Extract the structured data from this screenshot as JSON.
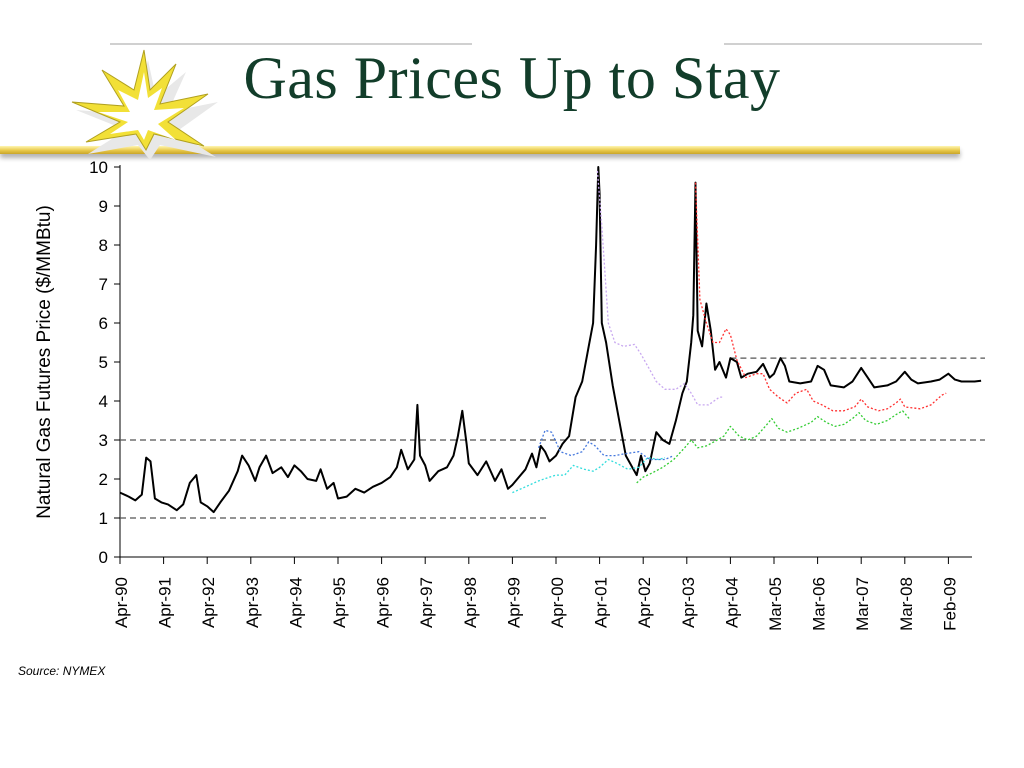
{
  "slide": {
    "title": "Gas Prices Up to Stay",
    "source": "Source: NYMEX"
  },
  "chart_data": {
    "type": "line",
    "title": "",
    "xlabel": "",
    "ylabel": "Natural Gas Futures Price ($/MMBtu)",
    "ylim": [
      0,
      10
    ],
    "yticks": [
      "0",
      "1",
      "2",
      "3",
      "4",
      "5",
      "6",
      "7",
      "8",
      "9",
      "10"
    ],
    "xticks": [
      "Apr-90",
      "Apr-91",
      "Apr-92",
      "Apr-93",
      "Apr-94",
      "Apr-95",
      "Apr-96",
      "Apr-97",
      "Apr-98",
      "Apr-99",
      "Apr-00",
      "Apr-01",
      "Apr-02",
      "Apr-03",
      "Apr-04",
      "Mar-05",
      "Mar-06",
      "Mar-07",
      "Mar-08",
      "Feb-09"
    ],
    "grid": false,
    "legend": "none",
    "reference_lines": [
      {
        "y": 1.0,
        "x_from": "Apr-90",
        "x_to": "Apr-00",
        "color": "#555555",
        "style": "dashed"
      },
      {
        "y": 3.0,
        "x_from": "Apr-90",
        "x_to": "end",
        "color": "#555555",
        "style": "dashed"
      },
      {
        "y": 5.1,
        "x_from": "Apr-04",
        "x_to": "end",
        "color": "#555555",
        "style": "dashed"
      }
    ],
    "series": [
      {
        "color": "#000000",
        "style": "solid",
        "points": [
          [
            1990.0,
            1.65
          ],
          [
            1990.2,
            1.55
          ],
          [
            1990.35,
            1.45
          ],
          [
            1990.5,
            1.6
          ],
          [
            1990.6,
            2.55
          ],
          [
            1990.7,
            2.45
          ],
          [
            1990.8,
            1.5
          ],
          [
            1990.95,
            1.4
          ],
          [
            1991.1,
            1.35
          ],
          [
            1991.3,
            1.2
          ],
          [
            1991.45,
            1.35
          ],
          [
            1991.6,
            1.9
          ],
          [
            1991.75,
            2.1
          ],
          [
            1991.85,
            1.4
          ],
          [
            1992.0,
            1.3
          ],
          [
            1992.15,
            1.15
          ],
          [
            1992.3,
            1.4
          ],
          [
            1992.5,
            1.7
          ],
          [
            1992.7,
            2.2
          ],
          [
            1992.8,
            2.6
          ],
          [
            1992.95,
            2.35
          ],
          [
            1993.1,
            1.95
          ],
          [
            1993.2,
            2.3
          ],
          [
            1993.35,
            2.6
          ],
          [
            1993.5,
            2.15
          ],
          [
            1993.7,
            2.3
          ],
          [
            1993.85,
            2.05
          ],
          [
            1994.0,
            2.35
          ],
          [
            1994.15,
            2.2
          ],
          [
            1994.3,
            2.0
          ],
          [
            1994.5,
            1.95
          ],
          [
            1994.6,
            2.25
          ],
          [
            1994.75,
            1.75
          ],
          [
            1994.9,
            1.9
          ],
          [
            1995.0,
            1.5
          ],
          [
            1995.2,
            1.55
          ],
          [
            1995.4,
            1.75
          ],
          [
            1995.6,
            1.65
          ],
          [
            1995.8,
            1.8
          ],
          [
            1996.0,
            1.9
          ],
          [
            1996.2,
            2.05
          ],
          [
            1996.35,
            2.3
          ],
          [
            1996.45,
            2.75
          ],
          [
            1996.6,
            2.25
          ],
          [
            1996.75,
            2.5
          ],
          [
            1996.82,
            3.9
          ],
          [
            1996.88,
            2.6
          ],
          [
            1997.0,
            2.35
          ],
          [
            1997.1,
            1.95
          ],
          [
            1997.3,
            2.2
          ],
          [
            1997.5,
            2.3
          ],
          [
            1997.65,
            2.6
          ],
          [
            1997.75,
            3.1
          ],
          [
            1997.85,
            3.75
          ],
          [
            1997.95,
            2.9
          ],
          [
            1998.0,
            2.4
          ],
          [
            1998.2,
            2.1
          ],
          [
            1998.4,
            2.45
          ],
          [
            1998.6,
            1.95
          ],
          [
            1998.75,
            2.25
          ],
          [
            1998.9,
            1.75
          ],
          [
            1999.0,
            1.85
          ],
          [
            1999.15,
            2.05
          ],
          [
            1999.3,
            2.25
          ],
          [
            1999.45,
            2.65
          ],
          [
            1999.55,
            2.3
          ],
          [
            1999.65,
            2.85
          ],
          [
            1999.75,
            2.7
          ],
          [
            1999.85,
            2.45
          ],
          [
            2000.0,
            2.6
          ],
          [
            2000.15,
            2.9
          ],
          [
            2000.3,
            3.1
          ],
          [
            2000.45,
            4.1
          ],
          [
            2000.6,
            4.5
          ],
          [
            2000.75,
            5.4
          ],
          [
            2000.85,
            6.0
          ],
          [
            2000.92,
            8.0
          ],
          [
            2000.97,
            10.0
          ],
          [
            2001.0,
            9.3
          ],
          [
            2001.05,
            6.0
          ],
          [
            2001.15,
            5.5
          ],
          [
            2001.3,
            4.4
          ],
          [
            2001.45,
            3.5
          ],
          [
            2001.6,
            2.6
          ],
          [
            2001.75,
            2.3
          ],
          [
            2001.85,
            2.1
          ],
          [
            2001.95,
            2.6
          ],
          [
            2002.05,
            2.2
          ],
          [
            2002.15,
            2.4
          ],
          [
            2002.3,
            3.2
          ],
          [
            2002.45,
            3.0
          ],
          [
            2002.6,
            2.9
          ],
          [
            2002.75,
            3.5
          ],
          [
            2002.9,
            4.2
          ],
          [
            2003.0,
            4.5
          ],
          [
            2003.1,
            5.5
          ],
          [
            2003.15,
            6.2
          ],
          [
            2003.2,
            9.6
          ],
          [
            2003.25,
            5.8
          ],
          [
            2003.35,
            5.4
          ],
          [
            2003.45,
            6.5
          ],
          [
            2003.55,
            5.8
          ],
          [
            2003.65,
            4.8
          ],
          [
            2003.75,
            5.0
          ],
          [
            2003.9,
            4.6
          ],
          [
            2004.0,
            5.1
          ],
          [
            2004.15,
            5.0
          ],
          [
            2004.25,
            4.6
          ],
          [
            2004.4,
            4.7
          ],
          [
            2004.6,
            4.75
          ],
          [
            2004.75,
            4.95
          ],
          [
            2004.9,
            4.6
          ],
          [
            2005.0,
            4.7
          ],
          [
            2005.15,
            5.1
          ],
          [
            2005.25,
            4.9
          ],
          [
            2005.35,
            4.5
          ],
          [
            2005.6,
            4.45
          ],
          [
            2005.85,
            4.5
          ],
          [
            2006.0,
            4.9
          ],
          [
            2006.15,
            4.8
          ],
          [
            2006.3,
            4.4
          ],
          [
            2006.6,
            4.35
          ],
          [
            2006.8,
            4.5
          ],
          [
            2007.0,
            4.85
          ],
          [
            2007.15,
            4.6
          ],
          [
            2007.3,
            4.35
          ],
          [
            2007.6,
            4.4
          ],
          [
            2007.8,
            4.5
          ],
          [
            2008.0,
            4.75
          ],
          [
            2008.15,
            4.55
          ],
          [
            2008.3,
            4.45
          ],
          [
            2008.6,
            4.5
          ],
          [
            2008.8,
            4.55
          ],
          [
            2009.0,
            4.7
          ],
          [
            2009.15,
            4.55
          ],
          [
            2009.3,
            4.5
          ],
          [
            2009.6,
            4.5
          ],
          [
            2009.75,
            4.52
          ]
        ]
      },
      {
        "color": "#33dddd",
        "style": "dotted",
        "points": [
          [
            1999.0,
            1.65
          ],
          [
            1999.3,
            1.8
          ],
          [
            1999.6,
            1.95
          ],
          [
            1999.85,
            2.05
          ],
          [
            2000.0,
            2.1
          ],
          [
            2000.2,
            2.1
          ],
          [
            2000.4,
            2.35
          ],
          [
            2000.65,
            2.25
          ],
          [
            2000.85,
            2.2
          ],
          [
            2001.0,
            2.3
          ],
          [
            2001.2,
            2.5
          ],
          [
            2001.4,
            2.4
          ],
          [
            2001.65,
            2.25
          ],
          [
            2001.9,
            2.3
          ],
          [
            2002.1,
            2.55
          ],
          [
            2002.35,
            2.5
          ],
          [
            2002.5,
            2.55
          ]
        ]
      },
      {
        "color": "#4477dd",
        "style": "dotted",
        "points": [
          [
            1999.6,
            2.8
          ],
          [
            1999.75,
            3.25
          ],
          [
            1999.9,
            3.2
          ],
          [
            2000.1,
            2.7
          ],
          [
            2000.35,
            2.6
          ],
          [
            2000.6,
            2.7
          ],
          [
            2000.75,
            2.95
          ],
          [
            2000.9,
            2.85
          ],
          [
            2001.1,
            2.6
          ],
          [
            2001.35,
            2.6
          ],
          [
            2001.6,
            2.65
          ],
          [
            2001.9,
            2.7
          ],
          [
            2002.15,
            2.5
          ],
          [
            2002.5,
            2.5
          ],
          [
            2002.7,
            2.6
          ]
        ]
      },
      {
        "color": "#c8a8f0",
        "style": "dotted",
        "points": [
          [
            2000.95,
            9.9
          ],
          [
            2001.05,
            8.5
          ],
          [
            2001.2,
            6.0
          ],
          [
            2001.35,
            5.5
          ],
          [
            2001.55,
            5.4
          ],
          [
            2001.8,
            5.45
          ],
          [
            2001.95,
            5.2
          ],
          [
            2002.1,
            4.9
          ],
          [
            2002.3,
            4.5
          ],
          [
            2002.5,
            4.3
          ],
          [
            2002.75,
            4.3
          ],
          [
            2002.95,
            4.45
          ],
          [
            2003.1,
            4.2
          ],
          [
            2003.25,
            3.9
          ],
          [
            2003.5,
            3.9
          ],
          [
            2003.75,
            4.1
          ],
          [
            2003.85,
            4.1
          ]
        ]
      },
      {
        "color": "#ff3030",
        "style": "dotted",
        "points": [
          [
            2003.2,
            9.6
          ],
          [
            2003.3,
            6.6
          ],
          [
            2003.45,
            6.0
          ],
          [
            2003.6,
            5.5
          ],
          [
            2003.75,
            5.5
          ],
          [
            2003.9,
            5.85
          ],
          [
            2004.0,
            5.7
          ],
          [
            2004.15,
            5.05
          ],
          [
            2004.35,
            4.6
          ],
          [
            2004.6,
            4.7
          ],
          [
            2004.75,
            4.7
          ],
          [
            2004.9,
            4.3
          ],
          [
            2005.1,
            4.1
          ],
          [
            2005.3,
            3.95
          ],
          [
            2005.5,
            4.2
          ],
          [
            2005.75,
            4.3
          ],
          [
            2005.9,
            4.0
          ],
          [
            2006.1,
            3.9
          ],
          [
            2006.35,
            3.75
          ],
          [
            2006.6,
            3.75
          ],
          [
            2006.85,
            3.85
          ],
          [
            2007.0,
            4.05
          ],
          [
            2007.15,
            3.85
          ],
          [
            2007.4,
            3.75
          ],
          [
            2007.6,
            3.8
          ],
          [
            2007.8,
            3.95
          ],
          [
            2007.9,
            4.05
          ],
          [
            2008.0,
            3.85
          ],
          [
            2008.35,
            3.8
          ],
          [
            2008.6,
            3.9
          ],
          [
            2008.85,
            4.15
          ],
          [
            2008.95,
            4.2
          ]
        ]
      },
      {
        "color": "#33cc33",
        "style": "dotted",
        "points": [
          [
            2001.85,
            1.9
          ],
          [
            2002.0,
            2.05
          ],
          [
            2002.2,
            2.15
          ],
          [
            2002.45,
            2.3
          ],
          [
            2002.7,
            2.5
          ],
          [
            2002.95,
            2.8
          ],
          [
            2003.1,
            3.0
          ],
          [
            2003.25,
            2.8
          ],
          [
            2003.45,
            2.85
          ],
          [
            2003.7,
            3.0
          ],
          [
            2003.85,
            3.1
          ],
          [
            2004.0,
            3.35
          ],
          [
            2004.2,
            3.1
          ],
          [
            2004.4,
            3.0
          ],
          [
            2004.6,
            3.1
          ],
          [
            2004.8,
            3.35
          ],
          [
            2004.95,
            3.55
          ],
          [
            2005.1,
            3.3
          ],
          [
            2005.3,
            3.2
          ],
          [
            2005.55,
            3.3
          ],
          [
            2005.85,
            3.45
          ],
          [
            2006.0,
            3.6
          ],
          [
            2006.2,
            3.45
          ],
          [
            2006.4,
            3.35
          ],
          [
            2006.6,
            3.4
          ],
          [
            2006.8,
            3.55
          ],
          [
            2006.95,
            3.7
          ],
          [
            2007.1,
            3.5
          ],
          [
            2007.35,
            3.4
          ],
          [
            2007.6,
            3.5
          ],
          [
            2007.8,
            3.65
          ],
          [
            2007.95,
            3.75
          ],
          [
            2008.1,
            3.55
          ]
        ]
      }
    ]
  }
}
